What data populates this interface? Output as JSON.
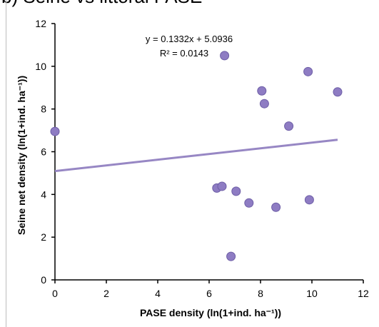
{
  "chart_data": {
    "type": "scatter",
    "title": "b) Seine vs littoral PASE",
    "xlabel": "PASE density (ln(1+ind. ha⁻¹))",
    "ylabel": "Seine net density (ln(1+ind. ha⁻¹))",
    "xlim": [
      0,
      12
    ],
    "ylim": [
      0,
      12
    ],
    "x_ticks": [
      0,
      2,
      4,
      6,
      8,
      10,
      12
    ],
    "y_ticks": [
      0,
      2,
      4,
      6,
      8,
      10,
      12
    ],
    "grid": false,
    "legend": "none",
    "series": [
      {
        "points": [
          {
            "x": 0.0,
            "y": 6.95
          },
          {
            "x": 6.3,
            "y": 4.3
          },
          {
            "x": 6.5,
            "y": 4.38
          },
          {
            "x": 6.6,
            "y": 10.5
          },
          {
            "x": 6.85,
            "y": 1.1
          },
          {
            "x": 7.05,
            "y": 4.15
          },
          {
            "x": 7.55,
            "y": 3.6
          },
          {
            "x": 8.05,
            "y": 8.85
          },
          {
            "x": 8.15,
            "y": 8.25
          },
          {
            "x": 8.6,
            "y": 3.4
          },
          {
            "x": 9.1,
            "y": 7.2
          },
          {
            "x": 9.85,
            "y": 9.75
          },
          {
            "x": 9.9,
            "y": 3.75
          },
          {
            "x": 11.0,
            "y": 8.8
          }
        ]
      }
    ],
    "trendline": {
      "slope": 0.1332,
      "intercept": 5.0936,
      "x_range": [
        0,
        11
      ],
      "equation_text": "y = 0.1332x + 5.0936",
      "r2_text": "R² = 0.0143"
    },
    "colors": {
      "marker": "#8e7cc3",
      "marker_edge": "#6d5ea6",
      "trendline": "#9787c4",
      "axis": "#000000"
    }
  }
}
